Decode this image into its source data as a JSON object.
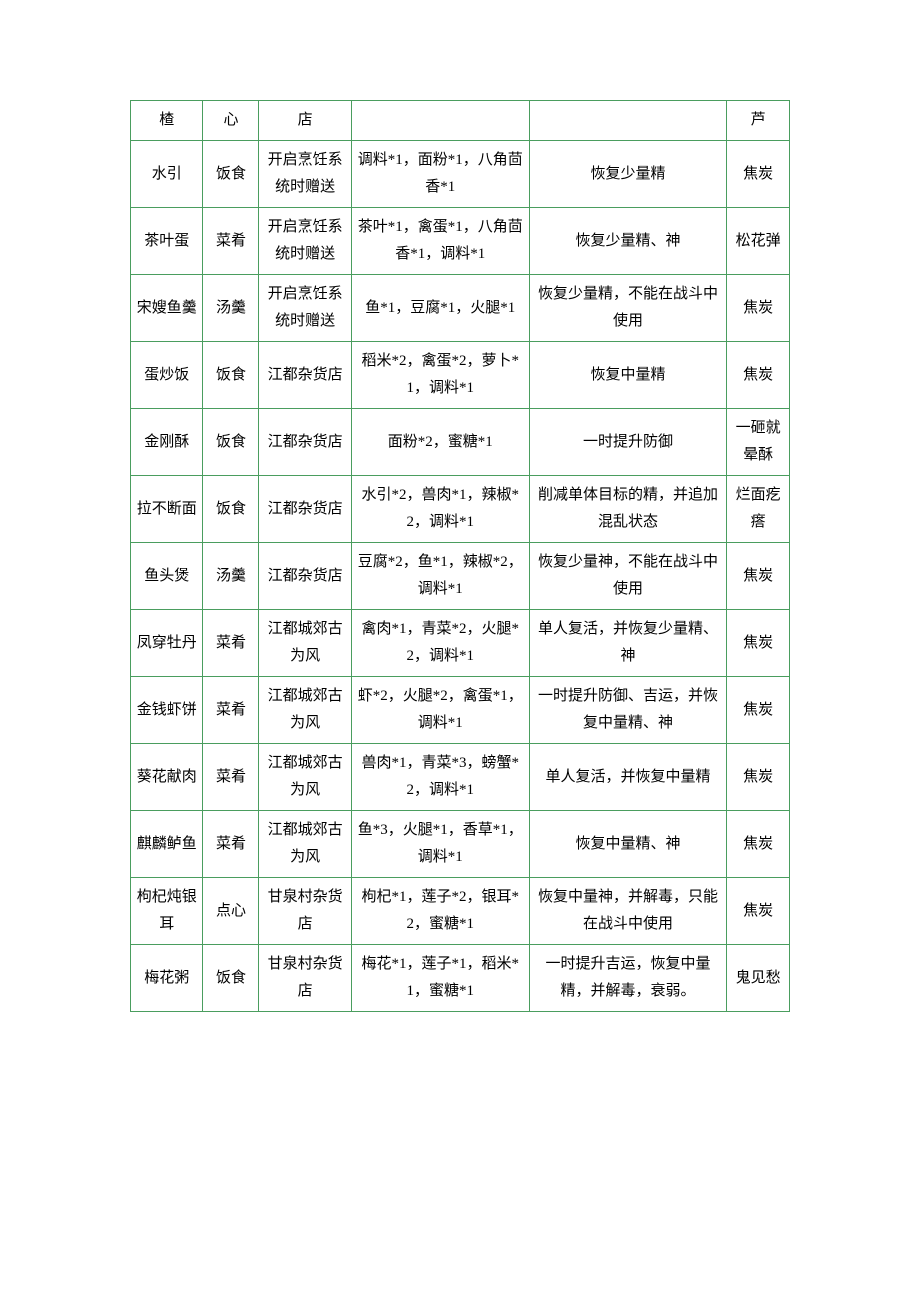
{
  "table": {
    "border_color": "#4a9d5e",
    "text_color": "#000000",
    "background_color": "#ffffff",
    "font_family": "SimSun",
    "font_size": 15,
    "columns": [
      {
        "width_pct": 11
      },
      {
        "width_pct": 8.5
      },
      {
        "width_pct": 14
      },
      {
        "width_pct": 27
      },
      {
        "width_pct": 30
      },
      {
        "width_pct": 9.5
      }
    ],
    "rows": [
      [
        "楂",
        "心",
        "店",
        "",
        "",
        "芦"
      ],
      [
        "水引",
        "饭食",
        "开启烹饪系统时赠送",
        "调料*1，面粉*1，八角茴香*1",
        "恢复少量精",
        "焦炭"
      ],
      [
        "茶叶蛋",
        "菜肴",
        "开启烹饪系统时赠送",
        "茶叶*1，禽蛋*1，八角茴香*1，调料*1",
        "恢复少量精、神",
        "松花弹"
      ],
      [
        "宋嫂鱼羹",
        "汤羹",
        "开启烹饪系统时赠送",
        "鱼*1，豆腐*1，火腿*1",
        "恢复少量精，不能在战斗中使用",
        "焦炭"
      ],
      [
        "蛋炒饭",
        "饭食",
        "江都杂货店",
        "稻米*2，禽蛋*2，萝卜*1，调料*1",
        "恢复中量精",
        "焦炭"
      ],
      [
        "金刚酥",
        "饭食",
        "江都杂货店",
        "面粉*2，蜜糖*1",
        "一时提升防御",
        "一砸就晕酥"
      ],
      [
        "拉不断面",
        "饭食",
        "江都杂货店",
        "水引*2，兽肉*1，辣椒*2，调料*1",
        "削减单体目标的精，并追加混乱状态",
        "烂面疙瘩"
      ],
      [
        "鱼头煲",
        "汤羹",
        "江都杂货店",
        "豆腐*2，鱼*1，辣椒*2，调料*1",
        "恢复少量神，不能在战斗中使用",
        "焦炭"
      ],
      [
        "凤穿牡丹",
        "菜肴",
        "江都城郊古为风",
        "禽肉*1，青菜*2，火腿*2，调料*1",
        "单人复活，并恢复少量精、神",
        "焦炭"
      ],
      [
        "金钱虾饼",
        "菜肴",
        "江都城郊古为风",
        "虾*2，火腿*2，禽蛋*1，调料*1",
        "一时提升防御、吉运，并恢复中量精、神",
        "焦炭"
      ],
      [
        "葵花献肉",
        "菜肴",
        "江都城郊古为风",
        "兽肉*1，青菜*3，螃蟹*2，调料*1",
        "单人复活，并恢复中量精",
        "焦炭"
      ],
      [
        "麒麟鲈鱼",
        "菜肴",
        "江都城郊古为风",
        "鱼*3，火腿*1，香草*1，调料*1",
        "恢复中量精、神",
        "焦炭"
      ],
      [
        "枸杞炖银耳",
        "点心",
        "甘泉村杂货店",
        "枸杞*1，莲子*2，银耳*2，蜜糖*1",
        "恢复中量神，并解毒，只能在战斗中使用",
        "焦炭"
      ],
      [
        "梅花粥",
        "饭食",
        "甘泉村杂货店",
        "梅花*1，莲子*1，稻米*1，蜜糖*1",
        "一时提升吉运，恢复中量精，并解毒，衰弱。",
        "鬼见愁"
      ]
    ]
  }
}
